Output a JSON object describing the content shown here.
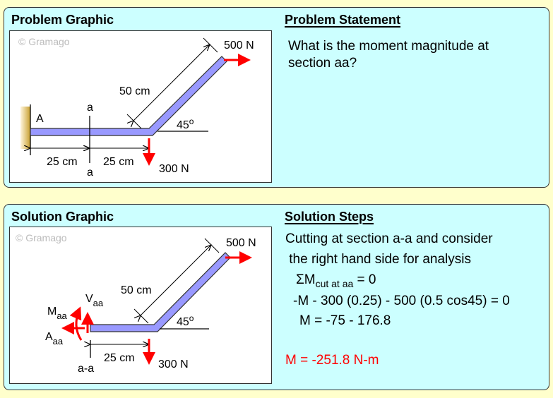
{
  "problem": {
    "graphic_title": "Problem Graphic",
    "statement_title": "Problem Statement",
    "statement_lines": [
      "What is the moment magnitude at",
      "section aa?"
    ],
    "diagram": {
      "watermark": "© Gramago",
      "support_label": "A",
      "section_label_top": "a",
      "section_label_bottom": "a",
      "dim_left": "25 cm",
      "dim_right": "25 cm",
      "dim_diagonal": "50 cm",
      "angle": "45",
      "angle_unit": "o",
      "force_horizontal": "500 N",
      "force_vertical": "300 N"
    }
  },
  "solution": {
    "graphic_title": "Solution Graphic",
    "steps_title": "Solution Steps",
    "line1": "Cutting at section a-a and consider",
    "line2": " the right hand side for analysis",
    "line3_main": "ΣM",
    "line3_sub": "cut at aa",
    "line3_rest": " = 0",
    "line4": "-M - 300 (0.25) - 500 (0.5 cos45) = 0",
    "line5": "M = -75 - 176.8",
    "answer": "M = -251.8 N-m",
    "diagram": {
      "watermark": "© Gramago",
      "moment_label": "M",
      "shear_label": "V",
      "axial_label": "A",
      "subscript": "aa",
      "section_label": "a-a",
      "dim_horizontal": "25 cm",
      "dim_diagonal": "50 cm",
      "angle": "45",
      "angle_unit": "o",
      "force_horizontal": "500 N",
      "force_vertical": "300 N"
    }
  },
  "colors": {
    "background": "#ffffcc",
    "panel": "#ccffff",
    "beam": "#9999ff",
    "force": "#ff0000",
    "answer": "#ff0000"
  }
}
